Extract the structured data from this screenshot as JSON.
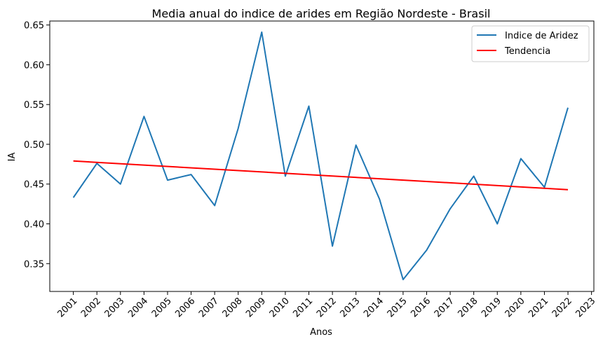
{
  "chart_data": {
    "type": "line",
    "title": "Media anual do indice de arides em Região Nordeste - Brasil",
    "xlabel": "Anos",
    "ylabel": "IA",
    "x_ticks": [
      "2001",
      "2002",
      "2003",
      "2004",
      "2005",
      "2006",
      "2007",
      "2008",
      "2009",
      "2010",
      "2011",
      "2012",
      "2013",
      "2014",
      "2015",
      "2016",
      "2017",
      "2018",
      "2019",
      "2020",
      "2021",
      "2022",
      "2023"
    ],
    "y_ticks": [
      "0.35",
      "0.40",
      "0.45",
      "0.50",
      "0.55",
      "0.60",
      "0.65"
    ],
    "xlim": [
      2000.0,
      2023.1
    ],
    "ylim": [
      0.315,
      0.655
    ],
    "grid": false,
    "legend_position": "top-right",
    "series": [
      {
        "name": "Indice de Aridez",
        "color": "#1f77b4",
        "x": [
          2001,
          2002,
          2003,
          2004,
          2005,
          2006,
          2007,
          2008,
          2009,
          2010,
          2011,
          2012,
          2013,
          2014,
          2015,
          2016,
          2017,
          2018,
          2019,
          2020,
          2021,
          2022
        ],
        "values": [
          0.433,
          0.476,
          0.45,
          0.535,
          0.455,
          0.462,
          0.423,
          0.52,
          0.641,
          0.46,
          0.548,
          0.372,
          0.499,
          0.431,
          0.33,
          0.367,
          0.419,
          0.46,
          0.4,
          0.482,
          0.446,
          0.546
        ]
      },
      {
        "name": "Tendencia",
        "color": "#ff0000",
        "x": [
          2001,
          2022
        ],
        "values": [
          0.479,
          0.443
        ]
      }
    ]
  }
}
